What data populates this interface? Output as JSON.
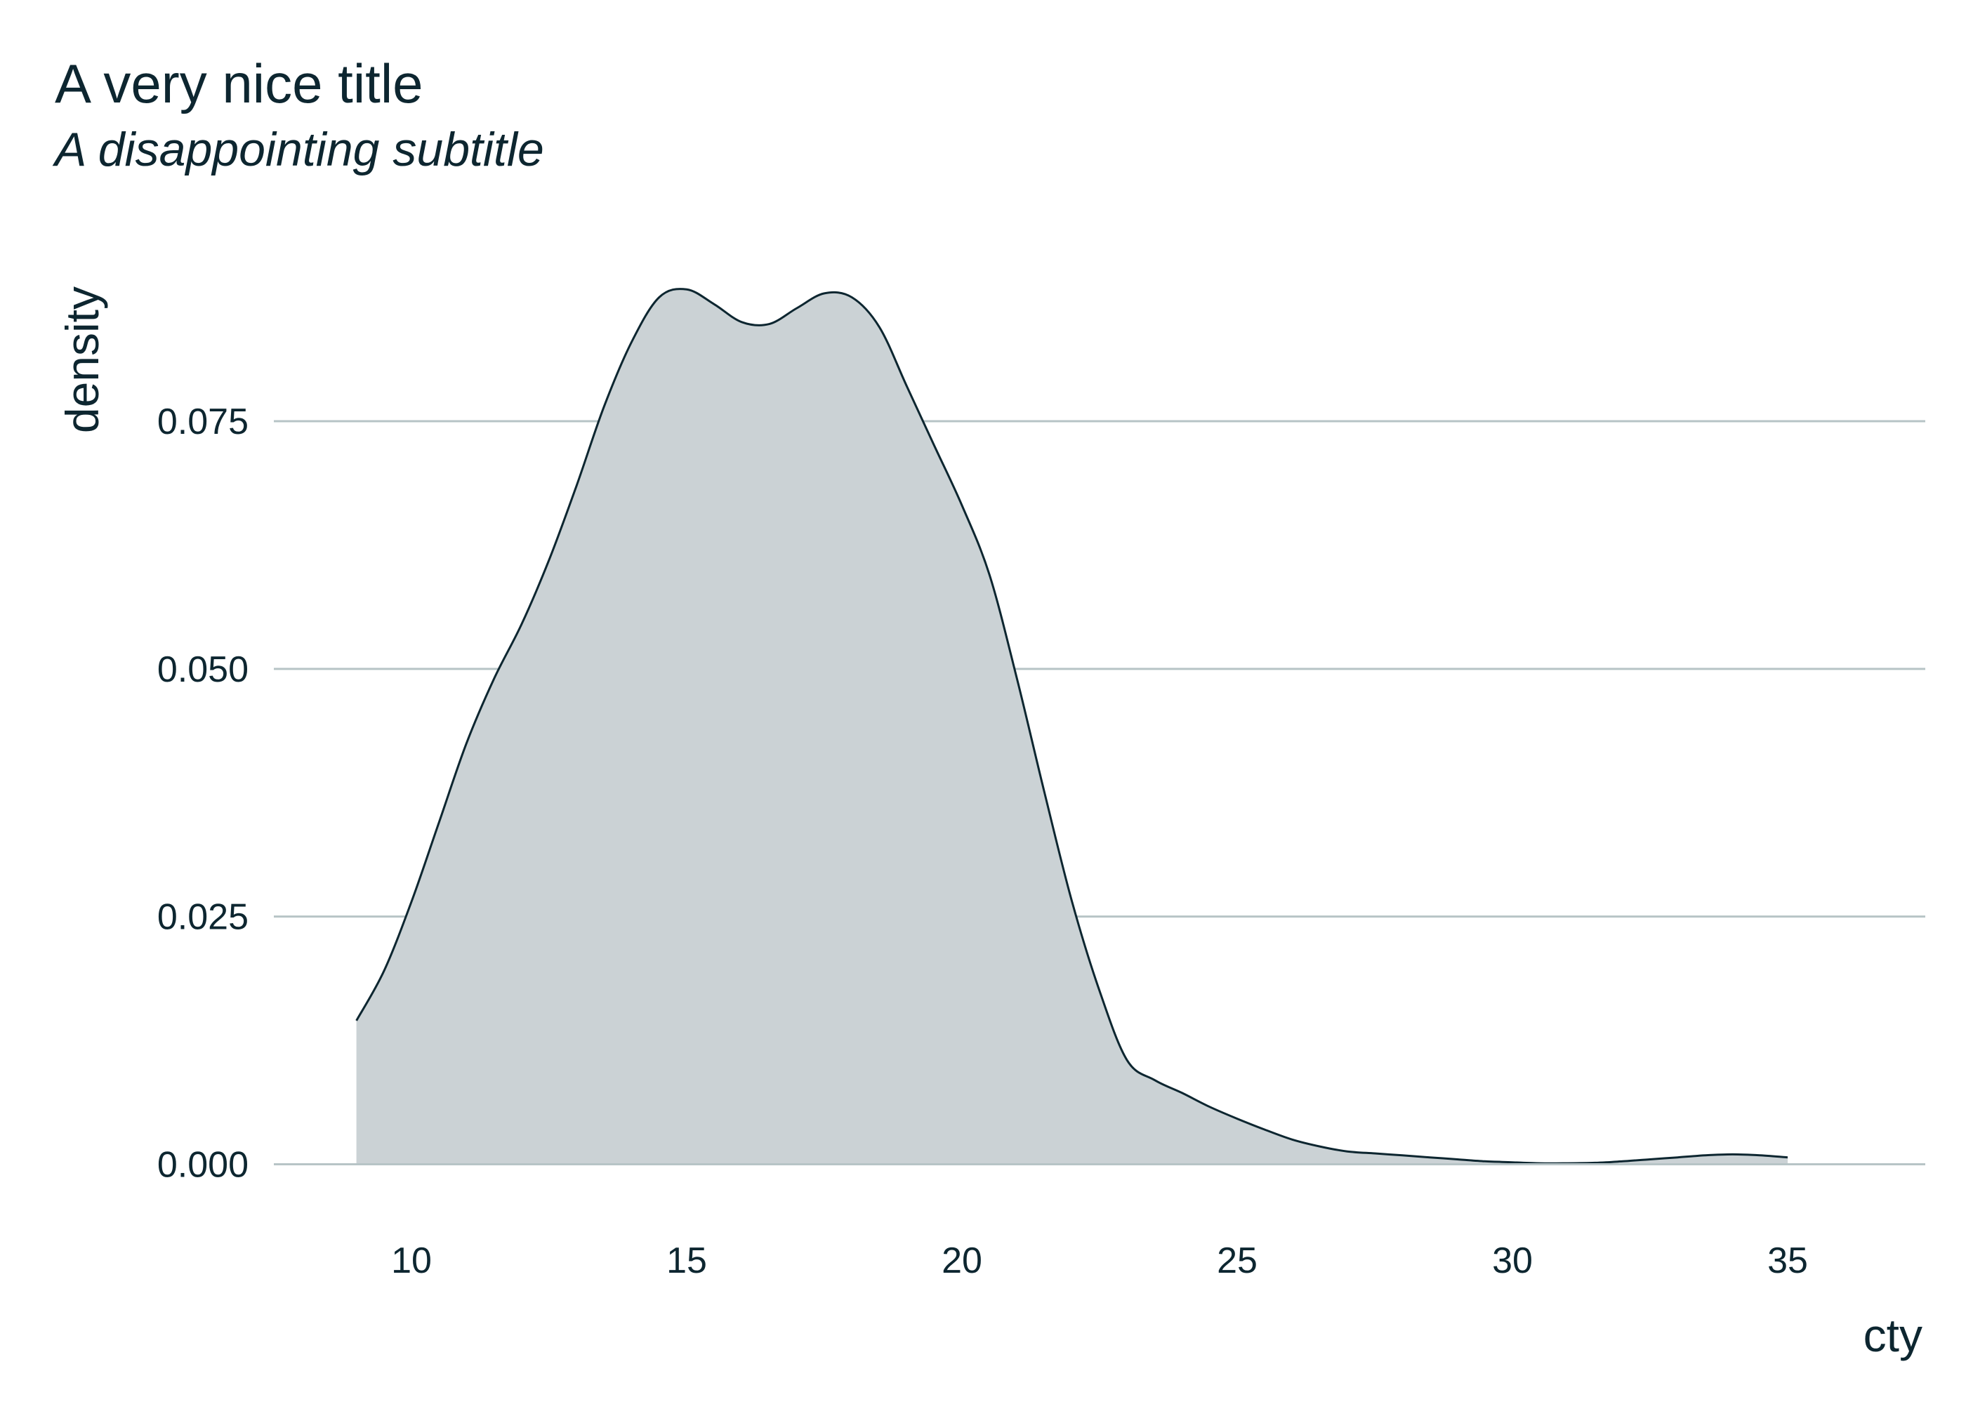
{
  "chart_data": {
    "type": "area",
    "title": "A very nice title",
    "subtitle": "A disappointing subtitle",
    "xlabel": "cty",
    "ylabel": "density",
    "xlim": [
      7.5,
      37.5
    ],
    "ylim": [
      -0.004,
      0.092
    ],
    "x_ticks": [
      10,
      15,
      20,
      25,
      30,
      35
    ],
    "x_tick_labels": [
      "10",
      "15",
      "20",
      "25",
      "30",
      "35"
    ],
    "y_ticks": [
      0,
      0.025,
      0.05,
      0.075
    ],
    "y_tick_labels": [
      "0.000",
      "0.025",
      "0.050",
      "0.075"
    ],
    "grid": "horizontal",
    "legend": "none",
    "fill_color": "#cbd2d5",
    "line_color": "#0d2630",
    "grid_color": "#b7c4c6",
    "text_color": "#0d2630",
    "series": [
      {
        "x": [
          9,
          9.5,
          10,
          10.5,
          11,
          11.5,
          12,
          12.5,
          13,
          13.5,
          14,
          14.5,
          15,
          15.5,
          16,
          16.5,
          17,
          17.5,
          18,
          18.5,
          19,
          19.5,
          20,
          20.5,
          21,
          21.5,
          22,
          22.5,
          23,
          23.5,
          24,
          24.5,
          25,
          25.5,
          26,
          26.5,
          27,
          27.5,
          28,
          28.5,
          29,
          29.5,
          30,
          30.5,
          31,
          31.5,
          32,
          32.5,
          33,
          33.5,
          34,
          34.5,
          35
        ],
        "y": [
          0.0145,
          0.0195,
          0.0265,
          0.0345,
          0.0425,
          0.049,
          0.0545,
          0.061,
          0.0685,
          0.0765,
          0.083,
          0.0875,
          0.0883,
          0.0868,
          0.085,
          0.0848,
          0.0864,
          0.0879,
          0.0875,
          0.0845,
          0.0785,
          0.0725,
          0.0665,
          0.0595,
          0.049,
          0.0375,
          0.0265,
          0.0175,
          0.0105,
          0.0085,
          0.0072,
          0.0058,
          0.0046,
          0.0035,
          0.0025,
          0.0018,
          0.0013,
          0.0011,
          0.0009,
          0.0007,
          0.0005,
          0.0003,
          0.0002,
          0.0001,
          0.0001,
          0.00015,
          0.0003,
          0.0005,
          0.0007,
          0.0009,
          0.001,
          0.0009,
          0.0007
        ]
      }
    ]
  }
}
